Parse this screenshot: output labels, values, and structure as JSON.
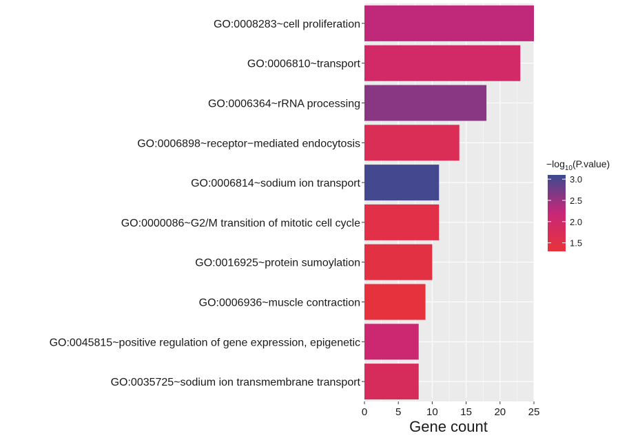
{
  "chart_data": {
    "type": "bar",
    "orientation": "horizontal",
    "categories": [
      "GO:0008283~cell proliferation",
      "GO:0006810~transport",
      "GO:0006364~rRNA processing",
      "GO:0006898~receptor−mediated endocytosis",
      "GO:0006814~sodium ion transport",
      "GO:0000086~G2/M transition of mitotic cell cycle",
      "GO:0016925~protein sumoylation",
      "GO:0006936~muscle contraction",
      "GO:0045815~positive regulation of gene expression, epigenetic",
      "GO:0035725~sodium ion transmembrane transport"
    ],
    "values": [
      25,
      23,
      18,
      14,
      11,
      11,
      10,
      9,
      8,
      8
    ],
    "color_values": [
      2.25,
      1.95,
      2.6,
      1.7,
      3.05,
      1.5,
      1.45,
      1.35,
      2.1,
      1.8
    ],
    "xlabel": "Gene count",
    "ylabel": "",
    "xlim": [
      0,
      25
    ],
    "xticks": [
      "0",
      "5",
      "10",
      "15",
      "20",
      "25"
    ],
    "grid": true,
    "panel_background": "#ebebeb",
    "legend": {
      "title_prefix": "−log",
      "title_subscript": "10",
      "title_suffix": "(P.value)",
      "placement": "right",
      "range": [
        1.3,
        3.1
      ],
      "ticks": [
        "3.0",
        "2.5",
        "2.0",
        "1.5"
      ],
      "tick_values": [
        3.0,
        2.5,
        2.0,
        1.5
      ],
      "color_low": "#e8333a",
      "color_mid": "#c82778",
      "color_high": "#3b4a90"
    }
  }
}
